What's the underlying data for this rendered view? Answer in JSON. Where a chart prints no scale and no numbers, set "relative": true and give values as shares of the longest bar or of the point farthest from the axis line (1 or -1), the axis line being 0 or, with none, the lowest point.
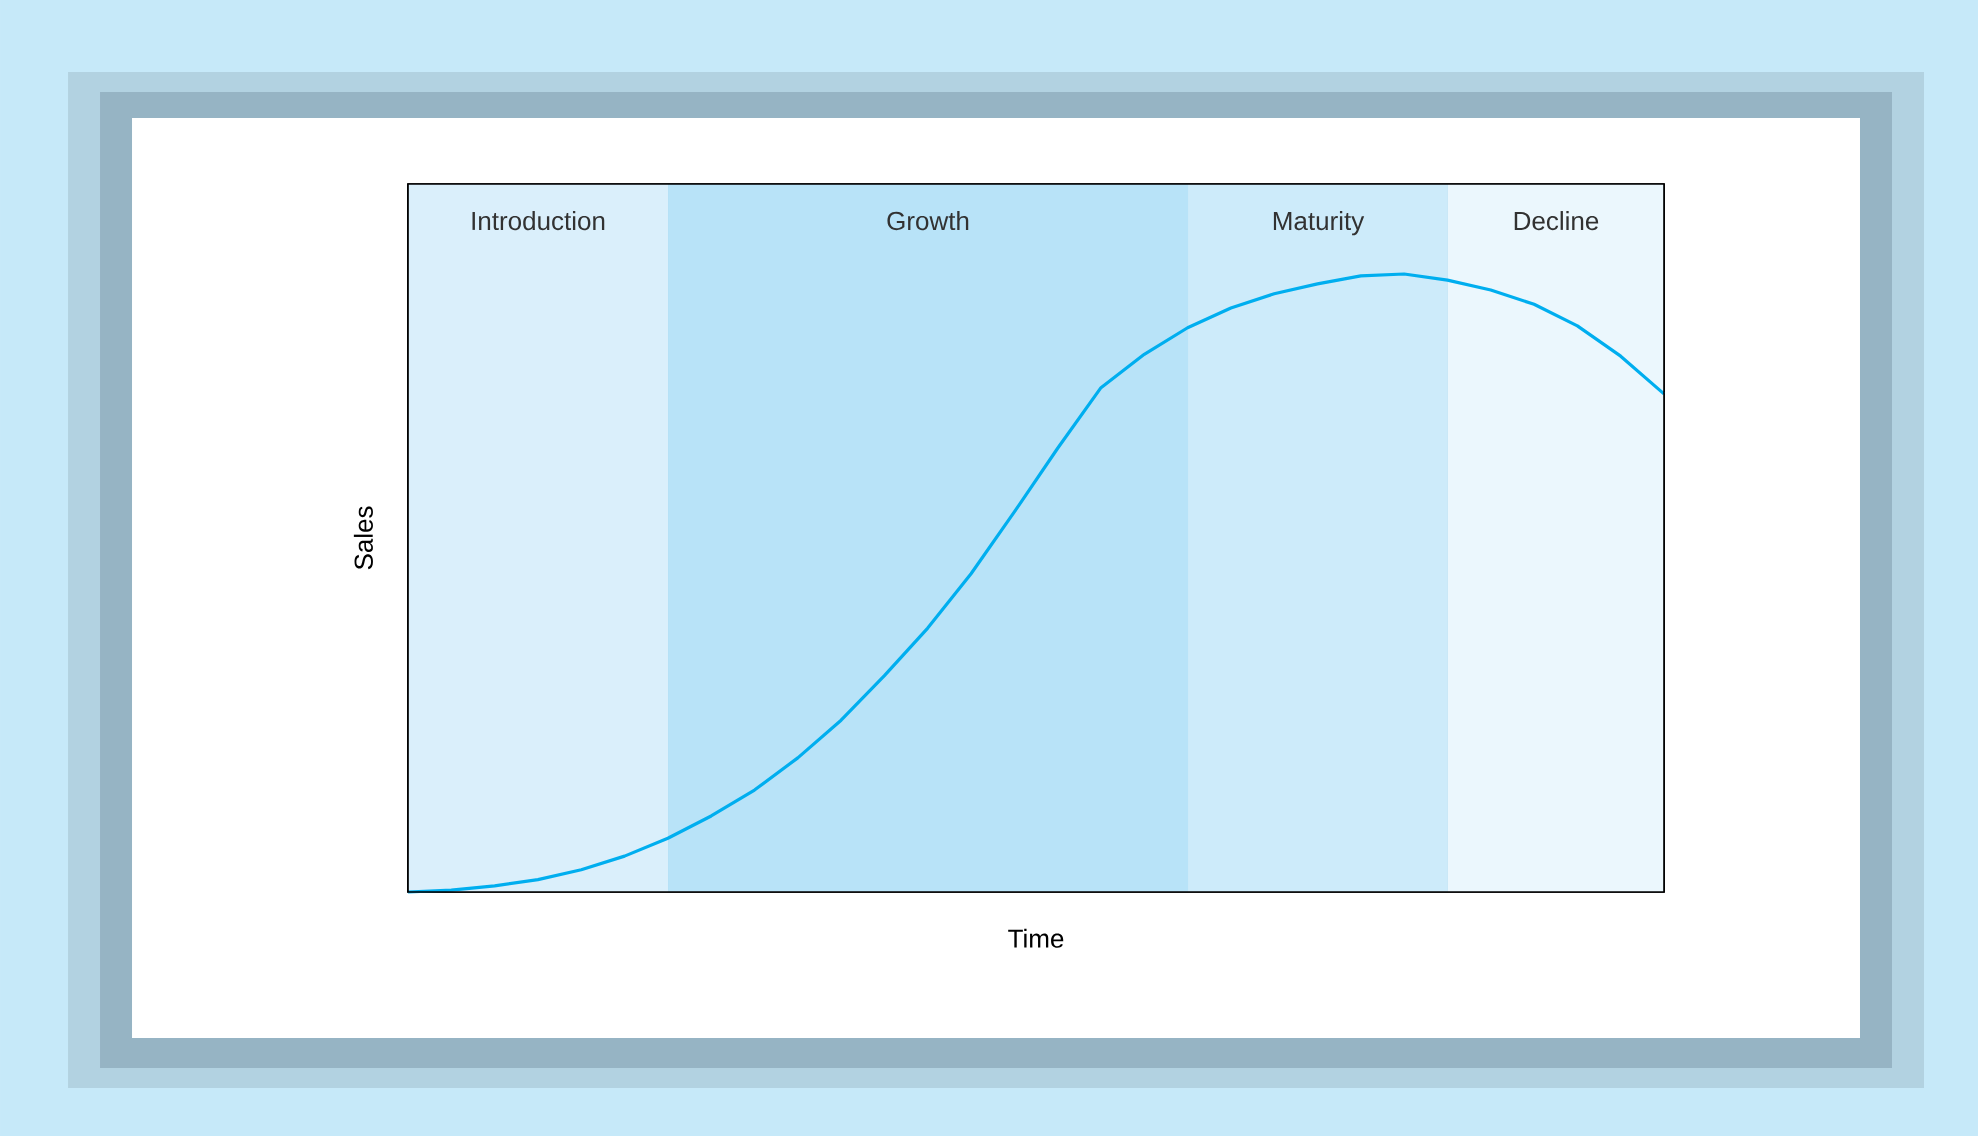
{
  "chart_data": {
    "type": "line",
    "relative": true,
    "grid": "x",
    "xlabel": "Time",
    "ylabel": "Sales",
    "annotations": [
      "Introduction",
      "Growth",
      "Maturity",
      "Decline"
    ],
    "categories": [
      null,
      null,
      null,
      null,
      null,
      null,
      null,
      null,
      null,
      null,
      null,
      null,
      null,
      null,
      null,
      null,
      null,
      null,
      null,
      null,
      null,
      null,
      null,
      null,
      null,
      null,
      null,
      null,
      null,
      null
    ],
    "series": [
      {
        "color": "#00aeef",
        "values": [
          0,
          0.003,
          0.01,
          0.02,
          0.036,
          0.058,
          0.087,
          0.123,
          0.165,
          0.217,
          0.278,
          0.35,
          0.427,
          0.515,
          0.615,
          0.718,
          0.816,
          0.87,
          0.913,
          0.945,
          0.968,
          0.984,
          0.997,
          1,
          0.99,
          0.974,
          0.951,
          0.916,
          0.867,
          0.806
        ]
      }
    ]
  }
}
